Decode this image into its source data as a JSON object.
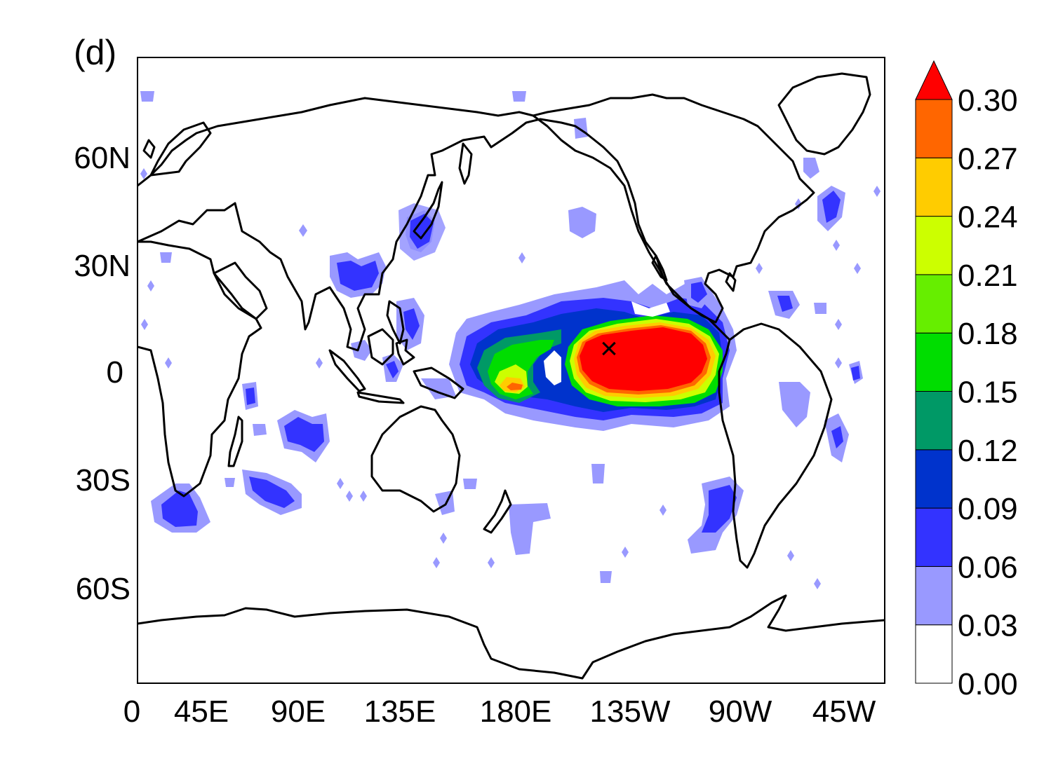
{
  "panel_label": "(d)",
  "map": {
    "lat_ticks": [
      "60N",
      "30N",
      "0",
      "30S",
      "60S"
    ],
    "lon_ticks": [
      "0",
      "45E",
      "90E",
      "135E",
      "180E",
      "135W",
      "90W",
      "45W"
    ],
    "marker": {
      "symbol": "×",
      "lon": 225,
      "lat": 6
    },
    "coastline_color": "#000000"
  },
  "colorbar": {
    "levels": [
      "0.00",
      "0.03",
      "0.06",
      "0.09",
      "0.12",
      "0.15",
      "0.18",
      "0.21",
      "0.24",
      "0.27",
      "0.30"
    ],
    "colors": [
      "#ffffff",
      "#9999ff",
      "#3333ff",
      "#0033cc",
      "#009966",
      "#00dd00",
      "#66ee00",
      "#ccff00",
      "#ffcc00",
      "#ff6600",
      "#ff0000"
    ],
    "extend_top": true
  }
}
